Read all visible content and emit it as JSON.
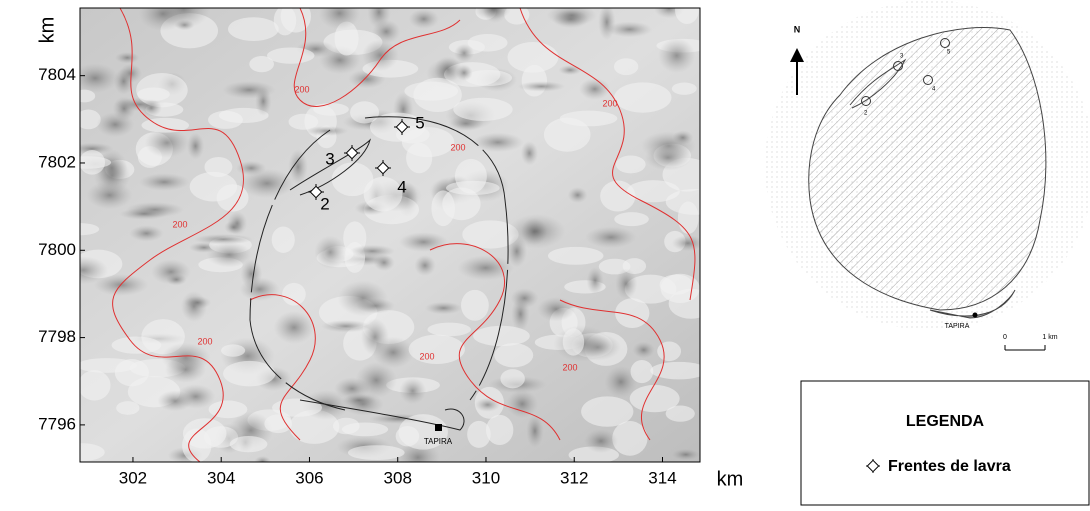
{
  "map": {
    "xlim": [
      300.8,
      314.85
    ],
    "ylim": [
      7795.15,
      7805.55
    ],
    "xticks": [
      302,
      304,
      306,
      308,
      310,
      312,
      314
    ],
    "yticks": [
      7796,
      7798,
      7800,
      7802,
      7804
    ],
    "x_axis_label": "km",
    "y_axis_label": "km",
    "contour_labels": [
      "200",
      "200",
      "200",
      "200",
      "200",
      "200",
      "200"
    ],
    "fronts": [
      "2",
      "3",
      "4",
      "5"
    ],
    "town_label": "TAPIRA"
  },
  "inset": {
    "north": "N",
    "fronts": [
      "5",
      "3",
      "4",
      "2"
    ],
    "town_label": "TAPIRA",
    "scale": [
      "0",
      "1 km"
    ]
  },
  "legend": {
    "title": "LEGENDA",
    "item": "Frentes de lavra"
  }
}
